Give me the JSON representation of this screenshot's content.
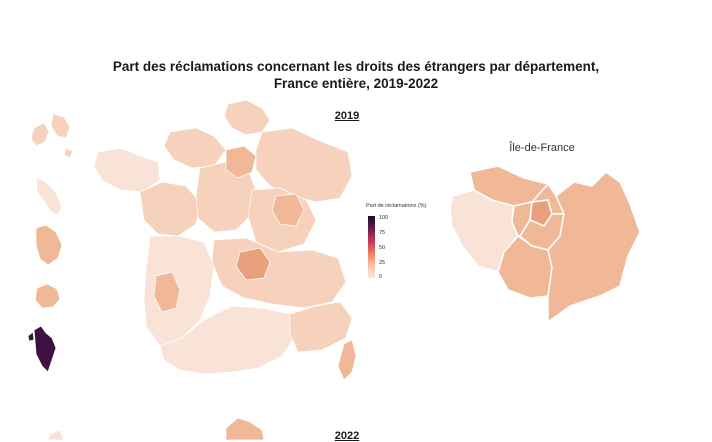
{
  "title_line1": "Part des réclamations concernant les droits des étrangers par département,",
  "title_line2": "France entière, 2019-2022",
  "panels": {
    "first_year": "2019",
    "second_year": "2022",
    "inset_label": "Île-de-France"
  },
  "legend": {
    "title": "Part de réclamations (%)",
    "ticks": [
      "100",
      "75",
      "50",
      "25",
      "0"
    ]
  },
  "colors": {
    "very_light": "#f9e3d6",
    "light": "#f6d2bd",
    "medium": "#f0b896",
    "darker": "#e9a07c",
    "overseas_dark": "#3d1240",
    "border": "#ffffff"
  }
}
